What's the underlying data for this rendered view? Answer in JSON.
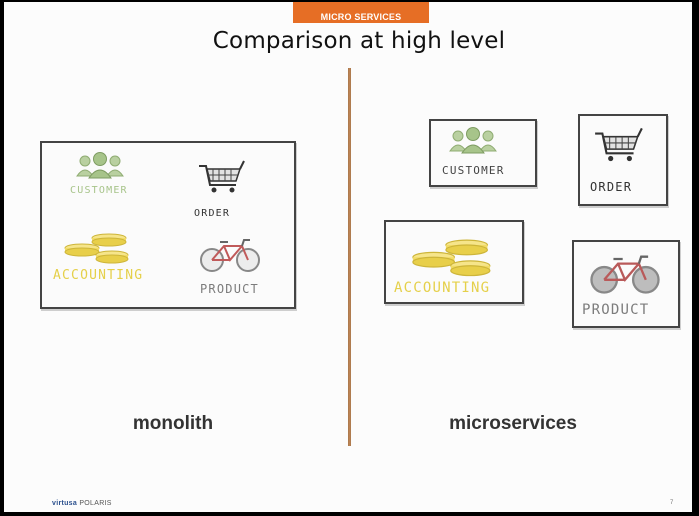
{
  "header": {
    "section_tag": "MICRO SERVICES",
    "title": "Comparison at high level"
  },
  "monolith": {
    "customer": "CUSTOMER",
    "order": "ORDER",
    "accounting": "ACCOUNTING",
    "product": "PRODUCT"
  },
  "microservices": {
    "customer": "CUSTOMER",
    "order": "ORDER",
    "accounting": "ACCOUNTING",
    "product": "PRODUCT"
  },
  "captions": {
    "monolith": "monolith",
    "microservices": "microservices"
  },
  "footer": {
    "brand": "virtusa",
    "suffix": "POLARIS",
    "page": "7"
  },
  "colors": {
    "accent": "#e66e25",
    "divider": "#b07c4f",
    "accounting": "#e5d04a",
    "customer": "#a7c48a"
  }
}
